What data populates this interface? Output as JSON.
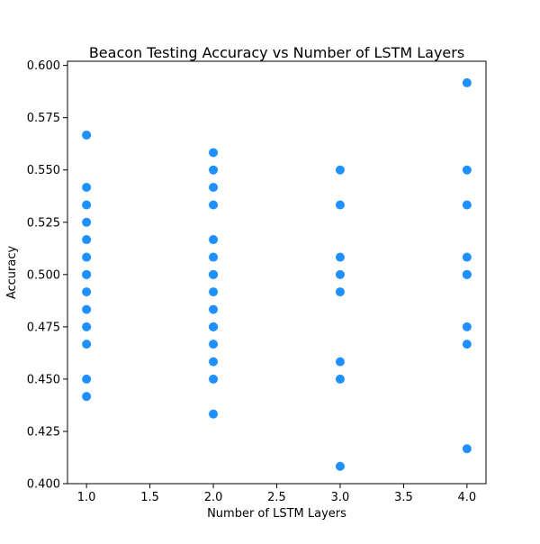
{
  "chart_data": {
    "type": "scatter",
    "title": "Beacon Testing Accuracy vs Number of LSTM Layers",
    "xlabel": "Number of LSTM Layers",
    "ylabel": "Accuracy",
    "xlim": [
      0.85,
      4.15
    ],
    "ylim": [
      0.4,
      0.602
    ],
    "xticks": [
      1.0,
      1.5,
      2.0,
      2.5,
      3.0,
      3.5,
      4.0
    ],
    "xtick_labels": [
      "1.0",
      "1.5",
      "2.0",
      "2.5",
      "3.0",
      "3.5",
      "4.0"
    ],
    "yticks": [
      0.4,
      0.425,
      0.45,
      0.475,
      0.5,
      0.525,
      0.55,
      0.575,
      0.6
    ],
    "ytick_labels": [
      "0.400",
      "0.425",
      "0.450",
      "0.475",
      "0.500",
      "0.525",
      "0.550",
      "0.575",
      "0.600"
    ],
    "grid": false,
    "marker_color": "#1e90ff",
    "series": [
      {
        "x": [
          1,
          1,
          1,
          1,
          1,
          1,
          1,
          1,
          1,
          1,
          1,
          1,
          1,
          1,
          2,
          2,
          2,
          2,
          2,
          2,
          2,
          2,
          2,
          2,
          2,
          2,
          2,
          2,
          2,
          2,
          3,
          3,
          3,
          3,
          3,
          3,
          3,
          3,
          4,
          4,
          4,
          4,
          4,
          4,
          4,
          4,
          4
        ],
        "y": [
          0.5667,
          0.5417,
          0.5333,
          0.525,
          0.5167,
          0.5083,
          0.5,
          0.4917,
          0.4833,
          0.475,
          0.4667,
          0.45,
          0.4417,
          0.5,
          0.5583,
          0.55,
          0.5417,
          0.5333,
          0.5167,
          0.5083,
          0.5,
          0.4917,
          0.4833,
          0.475,
          0.4667,
          0.4583,
          0.45,
          0.4333,
          0.5,
          0.475,
          0.55,
          0.5333,
          0.5083,
          0.5,
          0.4917,
          0.4583,
          0.45,
          0.4083,
          0.5917,
          0.55,
          0.5333,
          0.5083,
          0.5,
          0.475,
          0.4667,
          0.4167,
          0.5
        ]
      }
    ]
  }
}
